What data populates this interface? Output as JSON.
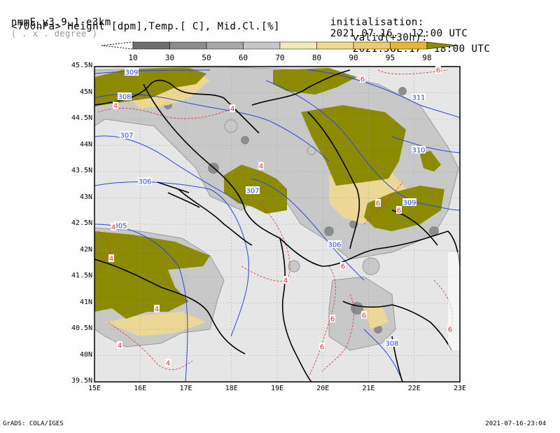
{
  "header": {
    "model": "nmmE_v3.9.1-e3km",
    "units": "( . x . degree )",
    "init_label": "initialisation:",
    "init_value": "2021.07.16.  12:00 UTC",
    "subtitle": "<700hPa> Height [dpm],Temp.[ C], Mid.Cl.[%]",
    "valid_label": "valid(+30h):",
    "valid_value": "2021.JUL.17  18:00 UTC"
  },
  "colorbar": {
    "levels": [
      "10",
      "30",
      "50",
      "60",
      "70",
      "80",
      "90",
      "95",
      "98"
    ],
    "colors": [
      "#ffffff",
      "#6e6e6e",
      "#8c8c8c",
      "#a8a8a8",
      "#c8c8c8",
      "#f0eab4",
      "#f0d890",
      "#f0c870",
      "#e8b440",
      "#8c8a00"
    ]
  },
  "map": {
    "lat_labels": [
      "45.5N",
      "45N",
      "44.5N",
      "44N",
      "43.5N",
      "43N",
      "42.5N",
      "42N",
      "41.5N",
      "41N",
      "40.5N",
      "40N",
      "39.5N"
    ],
    "lon_labels": [
      "15E",
      "16E",
      "17E",
      "18E",
      "19E",
      "20E",
      "21E",
      "22E",
      "23E"
    ],
    "height_labels": [
      "309",
      "308",
      "307",
      "306",
      "305",
      "307",
      "306",
      "309",
      "310",
      "311",
      "308"
    ],
    "temp_labels": [
      "4",
      "4",
      "4",
      "4",
      "4",
      "4",
      "4",
      "4",
      "4",
      "6",
      "6",
      "6",
      "6",
      "6",
      "6",
      "6",
      "6",
      "6"
    ]
  },
  "footer": {
    "left": "GrADS: COLA/IGES",
    "right": "2021-07-16-23:04"
  }
}
